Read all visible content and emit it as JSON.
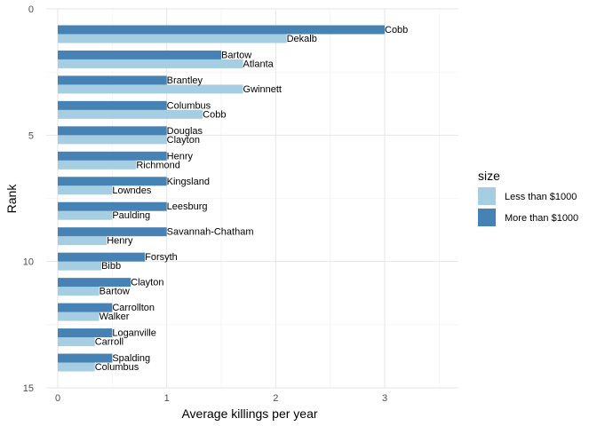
{
  "chart_data": {
    "type": "bar",
    "orientation": "horizontal",
    "xlabel": "Average killings per year",
    "ylabel": "Rank",
    "xlim": [
      0,
      3.5
    ],
    "ylim": [
      0,
      15
    ],
    "x_ticks": [
      0,
      1,
      2,
      3
    ],
    "y_ticks": [
      0,
      5,
      10,
      15
    ],
    "grid": true,
    "legend_position": "right",
    "legend_title": "size",
    "series": [
      {
        "name": "Less than $1000",
        "color": "#a6cee3",
        "ranks": [
          1,
          2,
          3,
          4,
          5,
          6,
          7,
          8,
          9,
          10,
          11,
          12,
          13,
          14
        ],
        "labels": [
          "Dekalb",
          "Atlanta",
          "Gwinnett",
          "Cobb",
          "Clayton",
          "Richmond",
          "Lowndes",
          "Paulding",
          "Henry",
          "Bibb",
          "Bartow",
          "Walker",
          "Carroll",
          "Columbus"
        ],
        "values": [
          2.1,
          1.7,
          1.7,
          1.33,
          1.0,
          0.72,
          0.5,
          0.5,
          0.45,
          0.4,
          0.38,
          0.38,
          0.34,
          0.34
        ]
      },
      {
        "name": "More than $1000",
        "color": "#4682b4",
        "ranks": [
          1,
          2,
          3,
          4,
          5,
          6,
          7,
          8,
          9,
          10,
          11,
          12,
          13,
          14
        ],
        "labels": [
          "Cobb",
          "Bartow",
          "Brantley",
          "Columbus",
          "Douglas",
          "Henry",
          "Kingsland",
          "Leesburg",
          "Savannah-Chatham",
          "Forsyth",
          "Clayton",
          "Carrollton",
          "Loganville",
          "Spalding"
        ],
        "values": [
          3.0,
          1.5,
          1.0,
          1.0,
          1.0,
          1.0,
          1.0,
          1.0,
          1.0,
          0.8,
          0.67,
          0.5,
          0.5,
          0.5
        ]
      }
    ]
  }
}
